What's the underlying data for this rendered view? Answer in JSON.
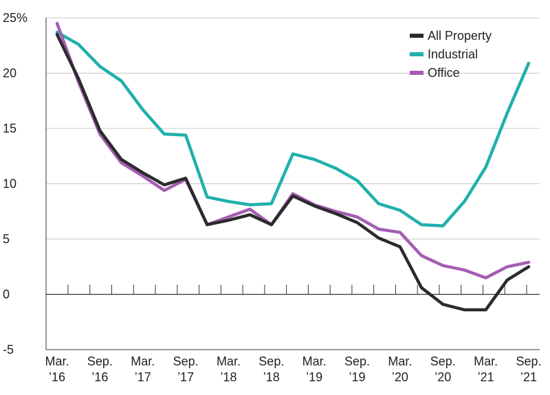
{
  "chart_data": {
    "type": "line",
    "y_tick_labels": [
      "25%",
      "20",
      "15",
      "10",
      "5",
      "0",
      "-5"
    ],
    "y_ticks": [
      25,
      20,
      15,
      10,
      5,
      0,
      -5
    ],
    "ylim": [
      -5,
      25
    ],
    "x_tick_labels": [
      [
        "Mar.",
        "’16"
      ],
      [
        "Sep.",
        "’16"
      ],
      [
        "Mar.",
        "’17"
      ],
      [
        "Sep.",
        "’17"
      ],
      [
        "Mar.",
        "’18"
      ],
      [
        "Sep.",
        "’18"
      ],
      [
        "Mar.",
        "’19"
      ],
      [
        "Sep.",
        "’19"
      ],
      [
        "Mar.",
        "’20"
      ],
      [
        "Sep.",
        "’20"
      ],
      [
        "Mar.",
        "’21"
      ],
      [
        "Sep.",
        "’21"
      ]
    ],
    "grid": "horizontal",
    "legend_position": "top-right",
    "series": [
      {
        "name": "All Property",
        "color": "#2b2b2e",
        "values": [
          23.5,
          19.5,
          14.8,
          12.2,
          11.0,
          9.9,
          10.5,
          6.3,
          6.7,
          7.2,
          6.3,
          8.9,
          8.0,
          7.3,
          6.5,
          5.1,
          4.3,
          0.6,
          -0.9,
          -1.4,
          -1.4,
          1.3,
          2.5
        ]
      },
      {
        "name": "Industrial",
        "color": "#1fb0ab",
        "values": [
          23.7,
          22.6,
          20.6,
          19.3,
          16.7,
          14.5,
          14.4,
          8.8,
          8.4,
          8.1,
          8.2,
          12.7,
          12.2,
          11.4,
          10.3,
          8.2,
          7.6,
          6.3,
          6.2,
          8.4,
          11.5,
          16.4,
          20.9
        ]
      },
      {
        "name": "Office",
        "color": "#a45db1",
        "values": [
          24.5,
          19.2,
          14.5,
          11.9,
          10.7,
          9.4,
          10.4,
          6.3,
          7.0,
          7.7,
          6.3,
          9.1,
          8.1,
          7.5,
          7.0,
          5.9,
          5.6,
          3.5,
          2.6,
          2.2,
          1.5,
          2.5,
          2.9
        ]
      }
    ]
  }
}
